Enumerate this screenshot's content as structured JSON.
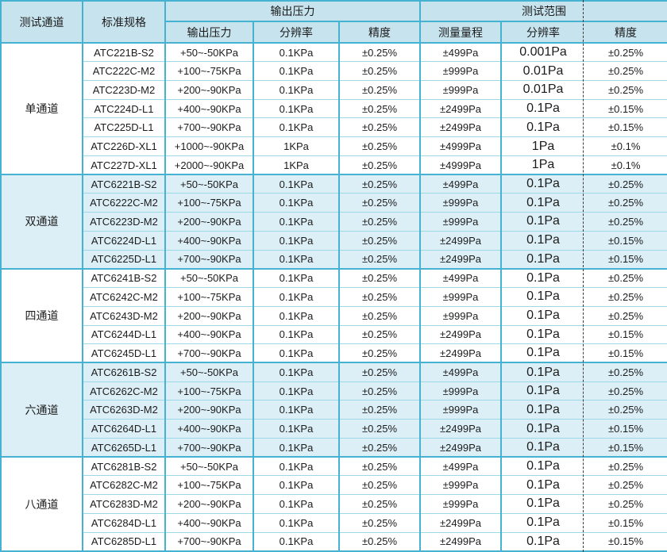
{
  "colors": {
    "border_strong": "#45b2d2",
    "border_light": "#9bd8e8",
    "header_bg": "#c7e3ee",
    "group_alt_bg": "#ddeff6",
    "row_bg": "#ffffff",
    "text": "#1c1c1c",
    "page_break_line": "#3a3a3a"
  },
  "table": {
    "header": {
      "channel": "测试通道",
      "model": "标准规格",
      "group_output": "输出压力",
      "group_range": "测试范围",
      "sub_output_pressure": "输出压力",
      "sub_output_resolution": "分辨率",
      "sub_output_accuracy": "精度",
      "sub_range_span": "测量量程",
      "sub_range_resolution": "分辨率",
      "sub_range_accuracy": "精度"
    },
    "column_semantics": [
      "model",
      "output_pressure",
      "output_resolution",
      "output_accuracy",
      "measure_range",
      "range_resolution",
      "range_accuracy"
    ],
    "groups": [
      {
        "channel": "单通道",
        "rows": [
          [
            "ATC221B-S2",
            "+50~-50KPa",
            "0.1KPa",
            "±0.25%",
            "±499Pa",
            "0.001Pa",
            "±0.25%"
          ],
          [
            "ATC222C-M2",
            "+100~-75KPa",
            "0.1KPa",
            "±0.25%",
            "±999Pa",
            "0.01Pa",
            "±0.25%"
          ],
          [
            "ATC223D-M2",
            "+200~-90KPa",
            "0.1KPa",
            "±0.25%",
            "±999Pa",
            "0.01Pa",
            "±0.25%"
          ],
          [
            "ATC224D-L1",
            "+400~-90KPa",
            "0.1KPa",
            "±0.25%",
            "±2499Pa",
            "0.1Pa",
            "±0.15%"
          ],
          [
            "ATC225D-L1",
            "+700~-90KPa",
            "0.1KPa",
            "±0.25%",
            "±2499Pa",
            "0.1Pa",
            "±0.15%"
          ],
          [
            "ATC226D-XL1",
            "+1000~-90KPa",
            "1KPa",
            "±0.25%",
            "±4999Pa",
            "1Pa",
            "±0.1%"
          ],
          [
            "ATC227D-XL1",
            "+2000~-90KPa",
            "1KPa",
            "±0.25%",
            "±4999Pa",
            "1Pa",
            "±0.1%"
          ]
        ]
      },
      {
        "channel": "双通道",
        "rows": [
          [
            "ATC6221B-S2",
            "+50~-50KPa",
            "0.1KPa",
            "±0.25%",
            "±499Pa",
            "0.1Pa",
            "±0.25%"
          ],
          [
            "ATC6222C-M2",
            "+100~-75KPa",
            "0.1KPa",
            "±0.25%",
            "±999Pa",
            "0.1Pa",
            "±0.25%"
          ],
          [
            "ATC6223D-M2",
            "+200~-90KPa",
            "0.1KPa",
            "±0.25%",
            "±999Pa",
            "0.1Pa",
            "±0.25%"
          ],
          [
            "ATC6224D-L1",
            "+400~-90KPa",
            "0.1KPa",
            "±0.25%",
            "±2499Pa",
            "0.1Pa",
            "±0.15%"
          ],
          [
            "ATC6225D-L1",
            "+700~-90KPa",
            "0.1KPa",
            "±0.25%",
            "±2499Pa",
            "0.1Pa",
            "±0.15%"
          ]
        ]
      },
      {
        "channel": "四通道",
        "rows": [
          [
            "ATC6241B-S2",
            "+50~-50KPa",
            "0.1KPa",
            "±0.25%",
            "±499Pa",
            "0.1Pa",
            "±0.25%"
          ],
          [
            "ATC6242C-M2",
            "+100~-75KPa",
            "0.1KPa",
            "±0.25%",
            "±999Pa",
            "0.1Pa",
            "±0.25%"
          ],
          [
            "ATC6243D-M2",
            "+200~-90KPa",
            "0.1KPa",
            "±0.25%",
            "±999Pa",
            "0.1Pa",
            "±0.25%"
          ],
          [
            "ATC6244D-L1",
            "+400~-90KPa",
            "0.1KPa",
            "±0.25%",
            "±2499Pa",
            "0.1Pa",
            "±0.15%"
          ],
          [
            "ATC6245D-L1",
            "+700~-90KPa",
            "0.1KPa",
            "±0.25%",
            "±2499Pa",
            "0.1Pa",
            "±0.15%"
          ]
        ]
      },
      {
        "channel": "六通道",
        "rows": [
          [
            "ATC6261B-S2",
            "+50~-50KPa",
            "0.1KPa",
            "±0.25%",
            "±499Pa",
            "0.1Pa",
            "±0.25%"
          ],
          [
            "ATC6262C-M2",
            "+100~-75KPa",
            "0.1KPa",
            "±0.25%",
            "±999Pa",
            "0.1Pa",
            "±0.25%"
          ],
          [
            "ATC6263D-M2",
            "+200~-90KPa",
            "0.1KPa",
            "±0.25%",
            "±999Pa",
            "0.1Pa",
            "±0.25%"
          ],
          [
            "ATC6264D-L1",
            "+400~-90KPa",
            "0.1KPa",
            "±0.25%",
            "±2499Pa",
            "0.1Pa",
            "±0.15%"
          ],
          [
            "ATC6265D-L1",
            "+700~-90KPa",
            "0.1KPa",
            "±0.25%",
            "±2499Pa",
            "0.1Pa",
            "±0.15%"
          ]
        ]
      },
      {
        "channel": "八通道",
        "rows": [
          [
            "ATC6281B-S2",
            "+50~-50KPa",
            "0.1KPa",
            "±0.25%",
            "±499Pa",
            "0.1Pa",
            "±0.25%"
          ],
          [
            "ATC6282C-M2",
            "+100~-75KPa",
            "0.1KPa",
            "±0.25%",
            "±999Pa",
            "0.1Pa",
            "±0.25%"
          ],
          [
            "ATC6283D-M2",
            "+200~-90KPa",
            "0.1KPa",
            "±0.25%",
            "±999Pa",
            "0.1Pa",
            "±0.25%"
          ],
          [
            "ATC6284D-L1",
            "+400~-90KPa",
            "0.1KPa",
            "±0.25%",
            "±2499Pa",
            "0.1Pa",
            "±0.15%"
          ],
          [
            "ATC6285D-L1",
            "+700~-90KPa",
            "0.1KPa",
            "±0.25%",
            "±2499Pa",
            "0.1Pa",
            "±0.15%"
          ]
        ]
      }
    ]
  }
}
